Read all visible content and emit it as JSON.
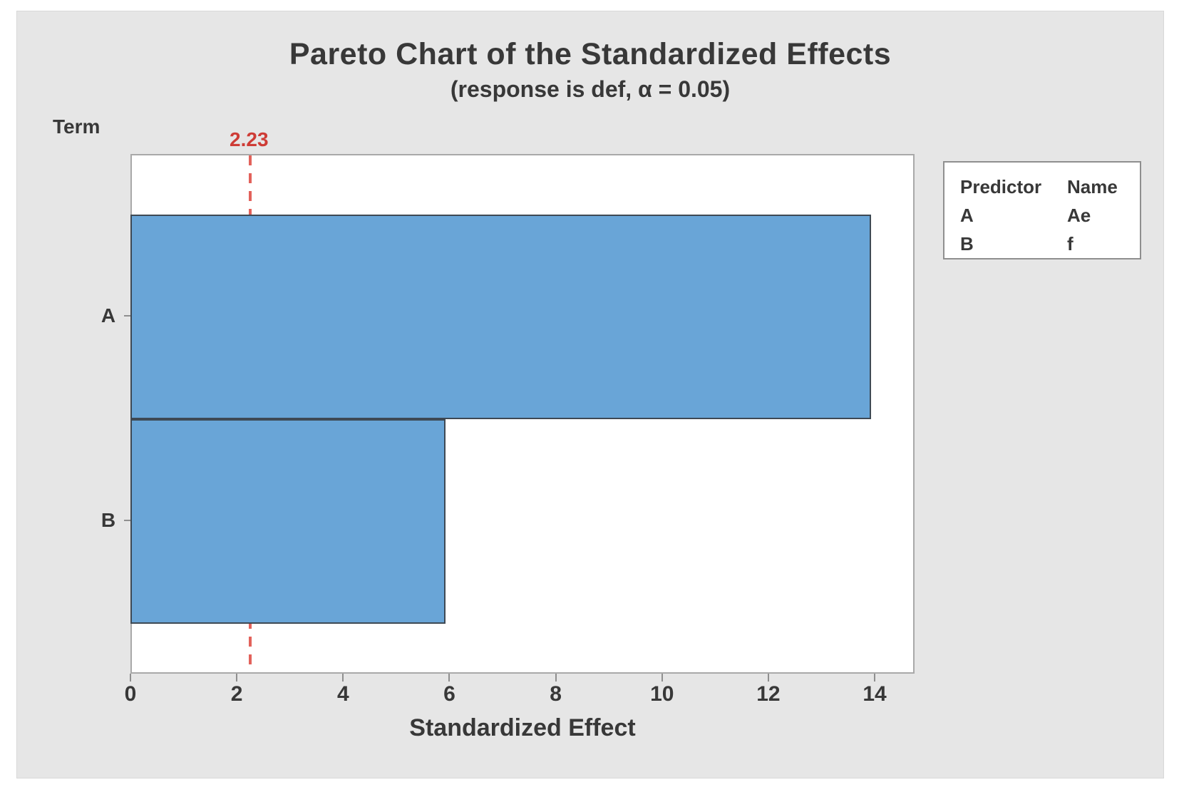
{
  "chart_data": {
    "type": "bar",
    "orientation": "horizontal",
    "title": "Pareto Chart of the Standardized Effects",
    "subtitle": "(response is def, α = 0.05)",
    "xlabel": "Standardized Effect",
    "ylabel": "Term",
    "categories": [
      "A",
      "B"
    ],
    "values": [
      13.9,
      5.9
    ],
    "xlim": [
      0,
      14.75
    ],
    "x_ticks": [
      0,
      2,
      4,
      6,
      8,
      10,
      12,
      14
    ],
    "grid": "off",
    "reference_line": {
      "value": 2.23,
      "label": "2.23"
    },
    "colors": {
      "bar_fill": "#69A5D7",
      "bar_edge": "#3E4954",
      "reference_line": "#E2625B",
      "reference_label": "#CE3C36",
      "text": "#383838",
      "plot_border": "#A9A9A9",
      "canvas_background": "#E6E6E6"
    },
    "legend": {
      "position": "top-right",
      "headers": [
        "Predictor",
        "Name"
      ],
      "rows": [
        [
          "A",
          "Ae"
        ],
        [
          "B",
          "f"
        ]
      ]
    }
  }
}
